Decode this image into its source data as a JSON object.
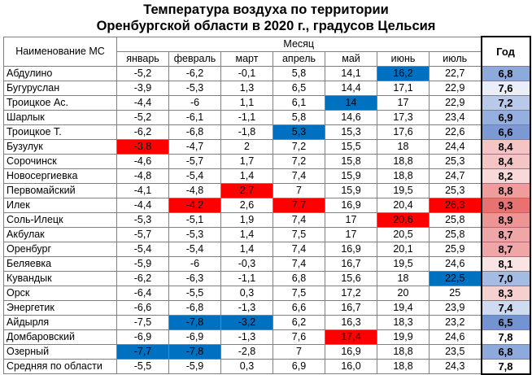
{
  "title": {
    "line1": "Температура воздуха по территории",
    "line2": "Оренбургской области в 2020 г., градусов Цельсия"
  },
  "headers": {
    "station": "Наименование МС",
    "month_group": "Месяц",
    "months": [
      "январь",
      "февраль",
      "март",
      "апрель",
      "май",
      "июнь",
      "июль"
    ],
    "year": "Год"
  },
  "colors": {
    "hot": "#ff0000",
    "cold": "#0070c0",
    "white": "#ffffff"
  },
  "rows": [
    {
      "name": "Абдулино",
      "values": [
        "-5,2",
        "-6,2",
        "-0,1",
        "5,8",
        "14,1",
        "16,2",
        "22,7"
      ],
      "year": "6,8",
      "highlight": [
        null,
        null,
        null,
        null,
        null,
        "cold",
        null
      ],
      "year_bg": "#8ea9db"
    },
    {
      "name": "Бугуруслан",
      "values": [
        "-3,9",
        "-5,3",
        "1,3",
        "6,5",
        "14,4",
        "17,1",
        "22,9"
      ],
      "year": "7,6",
      "highlight": [
        null,
        null,
        null,
        null,
        null,
        null,
        null
      ],
      "year_bg": "#e9eef8"
    },
    {
      "name": "Троицкое Ас.",
      "values": [
        "-4,4",
        "-6",
        "1,1",
        "6,1",
        "14",
        "17",
        "22,9"
      ],
      "year": "7,2",
      "highlight": [
        null,
        null,
        null,
        null,
        "cold",
        null,
        null
      ],
      "year_bg": "#b8c9ea"
    },
    {
      "name": "Шарлык",
      "values": [
        "-5,2",
        "-6,1",
        "-1,1",
        "5,8",
        "14,6",
        "17,3",
        "23,4"
      ],
      "year": "6,9",
      "highlight": [
        null,
        null,
        null,
        null,
        null,
        null,
        null
      ],
      "year_bg": "#95afde"
    },
    {
      "name": "Троицкое Т.",
      "values": [
        "-6,2",
        "-6,8",
        "-1,8",
        "5,3",
        "15,3",
        "17,6",
        "22,6"
      ],
      "year": "6,6",
      "highlight": [
        null,
        null,
        null,
        "cold",
        null,
        null,
        null
      ],
      "year_bg": "#7b9ad4"
    },
    {
      "name": "Бузулук",
      "values": [
        "-3,8",
        "-4,7",
        "2",
        "7,2",
        "15,5",
        "18",
        "24,4"
      ],
      "year": "8,4",
      "highlight": [
        "hot",
        null,
        null,
        null,
        null,
        null,
        null
      ],
      "year_bg": "#f5c4c4"
    },
    {
      "name": "Сорочинск",
      "values": [
        "-4,6",
        "-5,7",
        "1,7",
        "7,2",
        "15,8",
        "18,8",
        "25,3"
      ],
      "year": "8,4",
      "highlight": [
        null,
        null,
        null,
        null,
        null,
        null,
        null
      ],
      "year_bg": "#f5c4c4"
    },
    {
      "name": "Новосергиевка",
      "values": [
        "-4,8",
        "-5,4",
        "1,4",
        "7,4",
        "15,9",
        "18,8",
        "24,7"
      ],
      "year": "8,2",
      "highlight": [
        null,
        null,
        null,
        null,
        null,
        null,
        null
      ],
      "year_bg": "#f8d9d9"
    },
    {
      "name": "Первомайский",
      "values": [
        "-4,1",
        "-4,8",
        "2,7",
        "7",
        "15,9",
        "19,5",
        "25,3"
      ],
      "year": "8,8",
      "highlight": [
        null,
        null,
        "hot",
        null,
        null,
        null,
        null
      ],
      "year_bg": "#ef9c9c"
    },
    {
      "name": "Илек",
      "values": [
        "-4,4",
        "-4,2",
        "2,6",
        "7,7",
        "16,9",
        "20,4",
        "26,3"
      ],
      "year": "9,3",
      "highlight": [
        null,
        "hot",
        null,
        "hot",
        null,
        null,
        "hot"
      ],
      "year_bg": "#e87171"
    },
    {
      "name": "Соль-Илецк",
      "values": [
        "-5,3",
        "-5,1",
        "1,9",
        "7,4",
        "17",
        "20,6",
        "25,8"
      ],
      "year": "8,9",
      "highlight": [
        null,
        null,
        null,
        null,
        null,
        "hot",
        null
      ],
      "year_bg": "#ee9494"
    },
    {
      "name": "Акбулак",
      "values": [
        "-5,7",
        "-5,3",
        "1,4",
        "7,5",
        "17",
        "20,5",
        "25,8"
      ],
      "year": "8,7",
      "highlight": [
        null,
        null,
        null,
        null,
        null,
        null,
        null
      ],
      "year_bg": "#f0a6a6"
    },
    {
      "name": "Оренбург",
      "values": [
        "-5,4",
        "-5,4",
        "1,4",
        "7,4",
        "16,9",
        "20,1",
        "25,9"
      ],
      "year": "8,7",
      "highlight": [
        null,
        null,
        null,
        null,
        null,
        null,
        null
      ],
      "year_bg": "#f0a6a6"
    },
    {
      "name": "Беляевка",
      "values": [
        "-5,9",
        "-6",
        "-0,3",
        "7,4",
        "16,7",
        "19,5",
        "24,6"
      ],
      "year": "8,1",
      "highlight": [
        null,
        null,
        null,
        null,
        null,
        null,
        null
      ],
      "year_bg": "#fae3e3"
    },
    {
      "name": "Кувандык",
      "values": [
        "-6,2",
        "-6,3",
        "-1,1",
        "6,8",
        "15,6",
        "18",
        "22,5"
      ],
      "year": "7,0",
      "highlight": [
        null,
        null,
        null,
        null,
        null,
        null,
        "cold"
      ],
      "year_bg": "#a4bbe3"
    },
    {
      "name": "Орск",
      "values": [
        "-6,4",
        "-5,5",
        "0,3",
        "7,5",
        "17,2",
        "20",
        "25"
      ],
      "year": "8,3",
      "highlight": [
        null,
        null,
        null,
        null,
        null,
        null,
        null
      ],
      "year_bg": "#f6cfcf"
    },
    {
      "name": "Энергетик",
      "values": [
        "-6,6",
        "-6,8",
        "-1,3",
        "6,6",
        "16,7",
        "19,4",
        "23,9"
      ],
      "year": "7,4",
      "highlight": [
        null,
        null,
        null,
        null,
        null,
        null,
        null
      ],
      "year_bg": "#cfdbf1"
    },
    {
      "name": "Айдырля",
      "values": [
        "-7,5",
        "-7,8",
        "-3,2",
        "6,2",
        "16,3",
        "18,3",
        "23,2"
      ],
      "year": "6,5",
      "highlight": [
        null,
        "cold",
        "cold",
        null,
        null,
        null,
        null
      ],
      "year_bg": "#7393d1"
    },
    {
      "name": "Домбаровский",
      "values": [
        "-6,9",
        "-6,9",
        "-1,3",
        "7,6",
        "17,4",
        "19,9",
        "24,6"
      ],
      "year": "7,8",
      "highlight": [
        null,
        null,
        null,
        null,
        "hot",
        null,
        null
      ],
      "year_bg": "#ffffff"
    },
    {
      "name": "Озерный",
      "values": [
        "-7,7",
        "-7,8",
        "-2,8",
        "7",
        "16,9",
        "18,8",
        "23,5"
      ],
      "year": "6,8",
      "highlight": [
        "cold",
        "cold",
        null,
        null,
        null,
        null,
        null
      ],
      "year_bg": "#8ea9db"
    }
  ],
  "average": {
    "name": "Средняя по области",
    "values": [
      "-5,5",
      "-5,9",
      "0,3",
      "6,9",
      "16,0",
      "18,8",
      "24,3"
    ],
    "year": "7,8"
  }
}
